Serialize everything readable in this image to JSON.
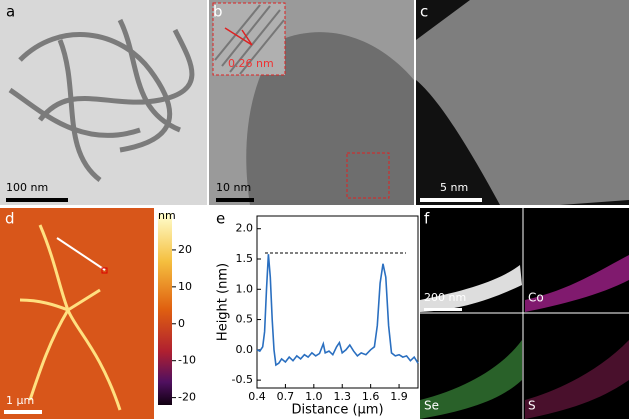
{
  "panels": {
    "a": {
      "label": "a",
      "scale_bar": "100 nm"
    },
    "b": {
      "label": "b",
      "scale_bar": "10 nm",
      "inset_spacing": "0.26 nm"
    },
    "c": {
      "label": "c",
      "scale_bar": "5 nm"
    },
    "d": {
      "label": "d",
      "scale_bar": "1 μm",
      "colorbar": {
        "unit": "nm",
        "lim": [
          -22,
          30
        ],
        "ticks": [
          20,
          10,
          0,
          -10,
          -20
        ]
      }
    },
    "e": {
      "label": "e"
    },
    "f": {
      "label": "f",
      "scale_bar": "200 nm",
      "maps": [
        "Co",
        "Se",
        "S"
      ]
    }
  },
  "chart_data": {
    "type": "line",
    "x_label": "Distance (μm)",
    "y_label": "Height (nm)",
    "color": "#2a6fc0",
    "x": [
      0.4,
      0.43,
      0.46,
      0.48,
      0.5,
      0.52,
      0.54,
      0.56,
      0.58,
      0.6,
      0.63,
      0.66,
      0.7,
      0.74,
      0.78,
      0.82,
      0.86,
      0.9,
      0.94,
      0.98,
      1.02,
      1.06,
      1.1,
      1.12,
      1.16,
      1.2,
      1.24,
      1.27,
      1.3,
      1.34,
      1.38,
      1.42,
      1.46,
      1.5,
      1.55,
      1.6,
      1.64,
      1.67,
      1.7,
      1.73,
      1.76,
      1.79,
      1.82,
      1.86,
      1.9,
      1.94,
      1.98,
      2.02,
      2.06,
      2.1
    ],
    "values": [
      0.0,
      -0.02,
      0.05,
      0.3,
      1.0,
      1.58,
      1.2,
      0.5,
      0.0,
      -0.25,
      -0.22,
      -0.15,
      -0.2,
      -0.12,
      -0.18,
      -0.1,
      -0.15,
      -0.08,
      -0.12,
      -0.05,
      -0.1,
      -0.06,
      0.1,
      -0.05,
      -0.02,
      -0.08,
      0.05,
      0.12,
      -0.05,
      0.0,
      0.08,
      -0.02,
      -0.1,
      -0.05,
      -0.08,
      0.0,
      0.05,
      0.4,
      1.1,
      1.42,
      1.2,
      0.4,
      -0.05,
      -0.1,
      -0.08,
      -0.12,
      -0.1,
      -0.18,
      -0.12,
      -0.22
    ],
    "reference_line": 1.6,
    "xlim": [
      0.4,
      2.1
    ],
    "xticks": [
      0.4,
      0.7,
      {
        "value": 1,
        "label": "1.0"
      },
      1.3,
      1.6,
      1.9
    ],
    "ylim": [
      -0.63,
      2.21
    ],
    "yticks": [
      -0.5,
      {
        "value": 0,
        "label": "0.0"
      },
      0.5,
      {
        "value": 1,
        "label": "1.0"
      },
      1.5,
      {
        "value": 2,
        "label": "2.0"
      }
    ]
  }
}
